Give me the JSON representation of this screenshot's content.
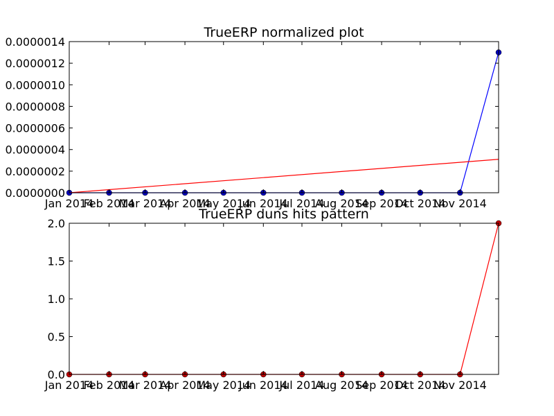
{
  "chart_data": [
    {
      "type": "line",
      "title": "TrueERP normalized plot",
      "xlabel": "",
      "ylabel": "",
      "x_tick_labels": [
        "Jan 2014",
        "Feb 2014",
        "Mar 2014",
        "Apr 2014",
        "May 2014",
        "Jun 2014",
        "Jul 2014",
        "Aug 2014",
        "Sep 2014",
        "Oct 2014",
        "Nov 2014"
      ],
      "y_tick_labels": [
        "0.0000000",
        "0.0000002",
        "0.0000004",
        "0.0000006",
        "0.0000008",
        "0.0000010",
        "0.0000012",
        "0.0000014"
      ],
      "ylim": [
        0,
        1.4e-06
      ],
      "x": [
        "2014-01-01",
        "2014-02-01",
        "2014-03-01",
        "2014-04-01",
        "2014-05-01",
        "2014-06-01",
        "2014-07-01",
        "2014-08-01",
        "2014-09-01",
        "2014-10-01",
        "2014-11-01",
        "2014-12-01"
      ],
      "series": [
        {
          "style": "line-markers",
          "color": "#0000ff",
          "marker_color": "#0000bf",
          "values": [
            0,
            0,
            0,
            0,
            0,
            0,
            0,
            0,
            0,
            0,
            0,
            1.3e-06
          ]
        },
        {
          "style": "line",
          "color": "#ff0000",
          "x_range": [
            "2014-01-01",
            "2014-12-01"
          ],
          "y_range": [
            0,
            3.1e-07
          ]
        }
      ]
    },
    {
      "type": "line",
      "title": "TrueERP duns hits pattern",
      "xlabel": "",
      "ylabel": "",
      "x_tick_labels": [
        "Jan 2014",
        "Feb 2014",
        "Mar 2014",
        "Apr 2014",
        "May 2014",
        "Jun 2014",
        "Jul 2014",
        "Aug 2014",
        "Sep 2014",
        "Oct 2014",
        "Nov 2014"
      ],
      "y_tick_labels": [
        "0.0",
        "0.5",
        "1.0",
        "1.5",
        "2.0"
      ],
      "ylim": [
        0,
        2
      ],
      "x": [
        "2014-01-01",
        "2014-02-01",
        "2014-03-01",
        "2014-04-01",
        "2014-05-01",
        "2014-06-01",
        "2014-07-01",
        "2014-08-01",
        "2014-09-01",
        "2014-10-01",
        "2014-11-01",
        "2014-12-01"
      ],
      "series": [
        {
          "style": "line-markers",
          "color": "#ff0000",
          "marker_color": "#bf0000",
          "values": [
            0,
            0,
            0,
            0,
            0,
            0,
            0,
            0,
            0,
            0,
            0,
            2
          ]
        }
      ]
    }
  ]
}
